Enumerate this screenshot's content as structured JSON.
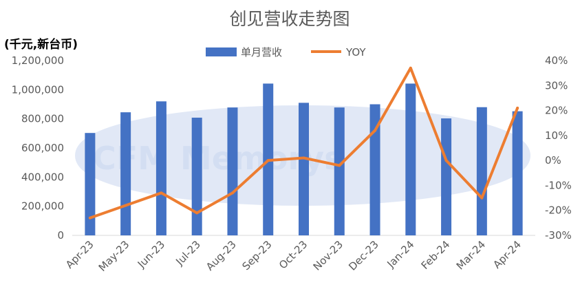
{
  "chart_data": {
    "type": "bar",
    "title": "创见营收走势图",
    "unit_label": "(千元,新台币)",
    "watermark": "CFM Memorys",
    "categories": [
      "Apr-23",
      "May-23",
      "Jun-23",
      "Jul-23",
      "Aug-23",
      "Sep-23",
      "Oct-23",
      "Nov-23",
      "Dec-23",
      "Jan-24",
      "Feb-24",
      "Mar-24",
      "Apr-24"
    ],
    "series": [
      {
        "name": "单月营收",
        "type": "bar",
        "axis": "left",
        "color": "#4472c4",
        "values": [
          703000,
          845000,
          920000,
          808000,
          878000,
          1042000,
          910000,
          878000,
          900000,
          1042000,
          803000,
          880000,
          852000
        ]
      },
      {
        "name": "YOY",
        "type": "line",
        "axis": "right",
        "color": "#ed7d31",
        "values": [
          -23,
          -18,
          -13,
          -21,
          -13,
          0,
          1,
          -2,
          12,
          37,
          0,
          -15,
          21
        ]
      }
    ],
    "left_axis": {
      "min": 0,
      "max": 1200000,
      "ticks": [
        "0",
        "200,000",
        "400,000",
        "600,000",
        "800,000",
        "1,000,000",
        "1,200,000"
      ]
    },
    "right_axis": {
      "min": -30,
      "max": 40,
      "ticks": [
        "-30%",
        "-20%",
        "-10%",
        "0%",
        "10%",
        "20%",
        "30%",
        "40%"
      ]
    },
    "legend_position": "top",
    "grid": false
  }
}
